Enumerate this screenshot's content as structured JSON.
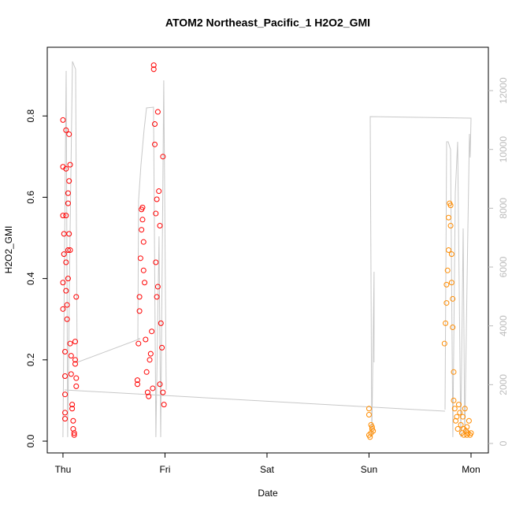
{
  "chart_data": {
    "type": "scatter",
    "title": "ATOM2 Northeast_Pacific_1 H2O2_GMI",
    "x_label": "Date",
    "y_label": "H2O2_GMI",
    "xlim": [
      -0.154,
      4.17
    ],
    "xticks": [
      {
        "value": 0,
        "label": "Thu"
      },
      {
        "value": 1,
        "label": "Fri"
      },
      {
        "value": 2,
        "label": "Sat"
      },
      {
        "value": 3,
        "label": "Sun"
      },
      {
        "value": 4,
        "label": "Mon"
      }
    ],
    "ylim": [
      -0.029,
      0.969
    ],
    "yticks": [
      {
        "value": 0,
        "label": "0.0"
      },
      0.2,
      0.4,
      0.6,
      0.8
    ],
    "y2lim": [
      -321,
      13474
    ],
    "y2ticks": [
      0,
      2000,
      4000,
      6000,
      8000,
      10000,
      12000
    ],
    "y2_color": "#bbbbbb",
    "series": [
      {
        "type": "line",
        "axis": "y2",
        "color": "#c8c8c8",
        "x": [
          0,
          0.031,
          0.046,
          0.069,
          0.093,
          0.124,
          0.139,
          0.757,
          0.734,
          0.741,
          0.764,
          0.795,
          0.819,
          0.888,
          0.911,
          0.942,
          0.958,
          0.988,
          1.012,
          null,
          0.015,
          3.745,
          null,
          3.05,
          3.05,
          3.027,
          3.012,
          4.0,
          3.992,
          3.985,
          3.969,
          3.938,
          3.923,
          3.9,
          3.869,
          3.846,
          3.822,
          3.799,
          3.776,
          3.761,
          3.745
        ],
        "values": [
          214,
          12671,
          214,
          7045,
          12992,
          12724,
          2759,
          3563,
          3563,
          8251,
          9456,
          10662,
          11412,
          11439,
          214,
          7045,
          214,
          12349,
          1822,
          null,
          1822,
          1098,
          null,
          2759,
          5840,
          214,
          11117,
          11064,
          9724,
          10528,
          7313,
          214,
          7313,
          214,
          10260,
          8519,
          214,
          9992,
          10260,
          10260,
          1152
        ]
      },
      {
        "type": "scatter",
        "color": "#ff0000",
        "x": [
          0.0,
          0.0,
          0.0,
          0.01,
          0.01,
          0.0,
          0.0,
          0.02,
          0.02,
          0.02,
          0.02,
          0.02,
          0.03,
          0.03,
          0.03,
          0.03,
          0.03,
          0.04,
          0.04,
          0.05,
          0.05,
          0.05,
          0.05,
          0.06,
          0.06,
          0.06,
          0.07,
          0.07,
          0.07,
          0.08,
          0.08,
          0.09,
          0.09,
          0.1,
          0.1,
          0.11,
          0.11,
          0.12,
          0.12,
          0.12,
          0.13,
          0.13,
          0.13,
          0.73,
          0.73,
          0.74,
          0.75,
          0.75,
          0.76,
          0.77,
          0.77,
          0.78,
          0.78,
          0.79,
          0.79,
          0.8,
          0.81,
          0.82,
          0.83,
          0.84,
          0.85,
          0.86,
          0.87,
          0.88,
          0.89,
          0.89,
          0.9,
          0.9,
          0.91,
          0.91,
          0.92,
          0.93,
          0.94,
          0.95,
          0.96,
          0.97,
          0.98,
          0.98,
          0.99,
          0.95,
          0.93,
          0.92
        ],
        "values": [
          0.79,
          0.675,
          0.555,
          0.51,
          0.46,
          0.39,
          0.325,
          0.22,
          0.16,
          0.115,
          0.07,
          0.055,
          0.765,
          0.67,
          0.555,
          0.44,
          0.37,
          0.335,
          0.3,
          0.61,
          0.585,
          0.47,
          0.4,
          0.755,
          0.64,
          0.51,
          0.68,
          0.47,
          0.24,
          0.21,
          0.165,
          0.09,
          0.08,
          0.05,
          0.03,
          0.015,
          0.02,
          0.245,
          0.2,
          0.19,
          0.355,
          0.155,
          0.135,
          0.15,
          0.14,
          0.24,
          0.32,
          0.355,
          0.45,
          0.52,
          0.57,
          0.575,
          0.545,
          0.49,
          0.42,
          0.39,
          0.25,
          0.17,
          0.12,
          0.11,
          0.2,
          0.215,
          0.27,
          0.13,
          0.925,
          0.915,
          0.78,
          0.73,
          0.44,
          0.56,
          0.595,
          0.81,
          0.615,
          0.53,
          0.29,
          0.23,
          0.7,
          0.12,
          0.09,
          0.14,
          0.38,
          0.355
        ]
      },
      {
        "type": "scatter",
        "color": "#ff8c00",
        "x": [
          3.0,
          3.0,
          3.0,
          3.01,
          3.02,
          3.02,
          3.03,
          3.03,
          3.04,
          3.74,
          3.75,
          3.76,
          3.76,
          3.77,
          3.78,
          3.78,
          3.79,
          3.8,
          3.8,
          3.81,
          3.81,
          3.82,
          3.82,
          3.83,
          3.83,
          3.84,
          3.85,
          3.86,
          3.87,
          3.88,
          3.89,
          3.9,
          3.91,
          3.92,
          3.93,
          3.94,
          3.95,
          3.96,
          3.97,
          3.98,
          3.99,
          4.0,
          3.96,
          3.93
        ],
        "values": [
          0.08,
          0.065,
          0.015,
          0.01,
          0.04,
          0.02,
          0.03,
          0.035,
          0.025,
          0.24,
          0.29,
          0.385,
          0.34,
          0.42,
          0.47,
          0.55,
          0.585,
          0.58,
          0.53,
          0.46,
          0.39,
          0.35,
          0.28,
          0.17,
          0.1,
          0.08,
          0.05,
          0.06,
          0.03,
          0.09,
          0.07,
          0.04,
          0.02,
          0.06,
          0.03,
          0.08,
          0.025,
          0.015,
          0.02,
          0.05,
          0.015,
          0.02,
          0.035,
          0.015
        ]
      }
    ]
  }
}
